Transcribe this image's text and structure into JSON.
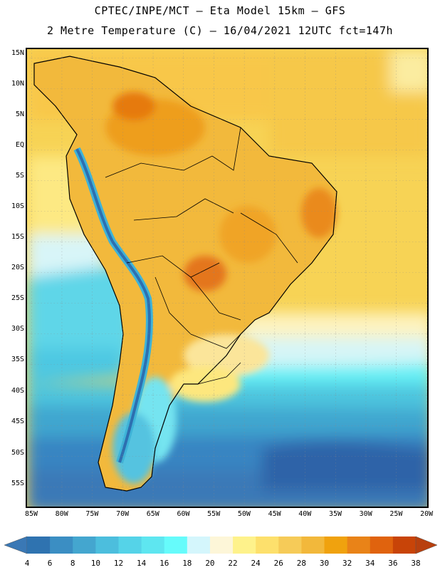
{
  "title": {
    "line1": "CPTEC/INPE/MCT –  Eta Model 15km – GFS",
    "line2": "2 Metre Temperature (C) – 16/04/2021 12UTC fct=147h"
  },
  "map": {
    "variable": "2 Metre Temperature",
    "units": "C",
    "lat_labels": [
      "15N",
      "10N",
      "5N",
      "EQ",
      "5S",
      "10S",
      "15S",
      "20S",
      "25S",
      "30S",
      "35S",
      "40S",
      "45S",
      "50S",
      "55S"
    ],
    "lon_labels": [
      "85W",
      "80W",
      "75W",
      "70W",
      "65W",
      "60W",
      "55W",
      "50W",
      "45W",
      "40W",
      "35W",
      "30W",
      "25W",
      "20W"
    ]
  },
  "colorbar": {
    "labels": [
      "4",
      "6",
      "8",
      "10",
      "12",
      "14",
      "16",
      "18",
      "20",
      "22",
      "24",
      "26",
      "28",
      "30",
      "32",
      "34",
      "36",
      "38"
    ],
    "colors": [
      "#3a78b5",
      "#2f73b0",
      "#3b8ec3",
      "#44a6cf",
      "#4cbedd",
      "#55d3e8",
      "#5ee6f0",
      "#66fbfb",
      "#d4f6fc",
      "#fdf6d8",
      "#fef28b",
      "#fde06c",
      "#f6cb58",
      "#f2b83b",
      "#f0a20e",
      "#e98318",
      "#e0630e",
      "#c84408",
      "#b8400e"
    ]
  }
}
